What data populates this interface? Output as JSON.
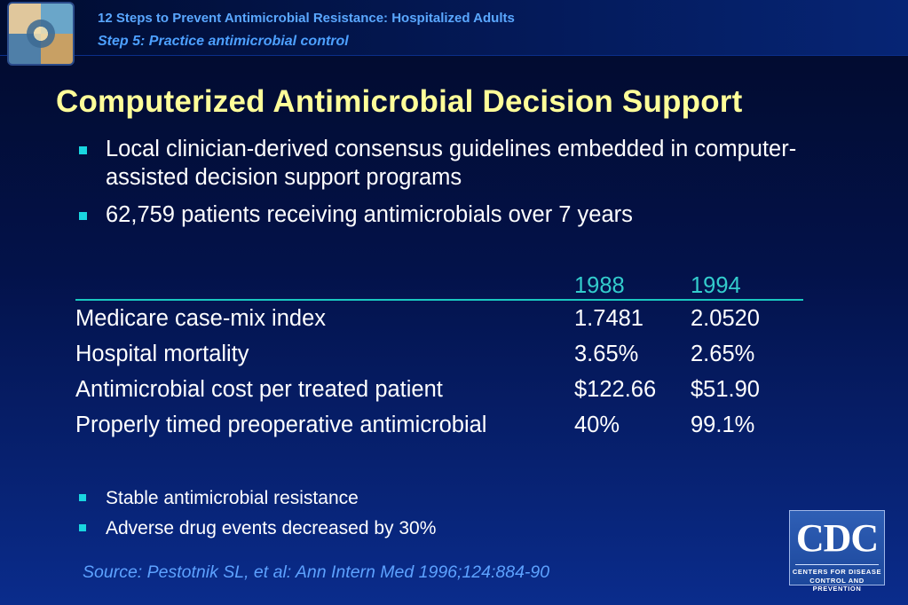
{
  "header": {
    "series_title": "12 Steps to Prevent Antimicrobial Resistance: Hospitalized Adults",
    "step_subtitle": "Step 5: Practice antimicrobial control"
  },
  "slide": {
    "title": "Computerized Antimicrobial Decision Support",
    "bullets": [
      "Local clinician-derived consensus guidelines embedded in computer-assisted decision support programs",
      "62,759 patients receiving antimicrobials over 7 years"
    ],
    "table": {
      "columns": [
        "",
        "1988",
        "1994"
      ],
      "rows": [
        [
          "Medicare case-mix index",
          "1.7481",
          "2.0520"
        ],
        [
          "Hospital mortality",
          "3.65%",
          "2.65%"
        ],
        [
          "Antimicrobial cost per treated patient",
          "$122.66",
          "$51.90"
        ],
        [
          "Properly timed preoperative antimicrobial",
          "40%",
          "99.1%"
        ]
      ]
    },
    "bullets2": [
      "Stable antimicrobial resistance",
      "Adverse drug events decreased by 30%"
    ],
    "source": "Source: Pestotnik SL, et al: Ann Intern Med  1996;124:884-90"
  },
  "logo": {
    "cdc_text": "CDC",
    "cdc_sub1": "CENTERS FOR DISEASE",
    "cdc_sub2": "CONTROL AND PREVENTION"
  },
  "colors": {
    "title": "#ffff99",
    "header_text": "#5aa7ff",
    "table_header": "#33cccc",
    "bullet_marker": "#19d6e0"
  }
}
